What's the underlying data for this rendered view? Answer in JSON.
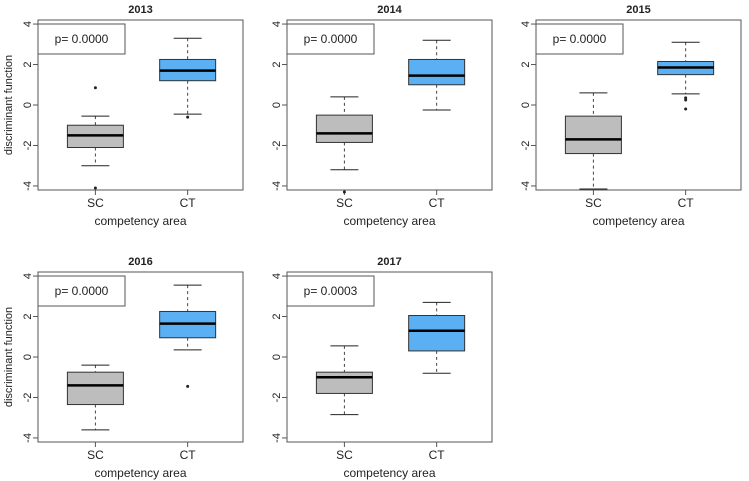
{
  "colors": {
    "sc_box": "#bdbdbd",
    "ct_box": "#5ab0f2",
    "frame": "#555555",
    "median": "#000000",
    "whisker": "#444444"
  },
  "chart_data": [
    {
      "type": "boxplot",
      "title": "2013",
      "xlabel": "competency area",
      "ylabel": "discriminant function",
      "ylim": [
        -4.2,
        4.2
      ],
      "yticks": [
        -4,
        -2,
        0,
        2,
        4
      ],
      "annotation": "p= 0.0000",
      "categories": [
        "SC",
        "CT"
      ],
      "boxes": [
        {
          "name": "SC",
          "whisker_low": -3.0,
          "q1": -2.1,
          "median": -1.5,
          "q3": -1.0,
          "whisker_high": -0.55,
          "outliers": [
            0.85,
            -4.1
          ]
        },
        {
          "name": "CT",
          "whisker_low": -0.45,
          "q1": 1.2,
          "median": 1.7,
          "q3": 2.25,
          "whisker_high": 3.3,
          "outliers": [
            -0.6
          ]
        }
      ]
    },
    {
      "type": "boxplot",
      "title": "2014",
      "xlabel": "competency area",
      "ylabel": "",
      "ylim": [
        -4.2,
        4.2
      ],
      "yticks": [
        -4,
        -2,
        0,
        2,
        4
      ],
      "annotation": "p= 0.0000",
      "categories": [
        "SC",
        "CT"
      ],
      "boxes": [
        {
          "name": "SC",
          "whisker_low": -3.2,
          "q1": -1.85,
          "median": -1.4,
          "q3": -0.5,
          "whisker_high": 0.4,
          "outliers": [
            -4.3
          ]
        },
        {
          "name": "CT",
          "whisker_low": -0.25,
          "q1": 1.0,
          "median": 1.45,
          "q3": 2.25,
          "whisker_high": 3.2,
          "outliers": []
        }
      ]
    },
    {
      "type": "boxplot",
      "title": "2015",
      "xlabel": "competency area",
      "ylabel": "",
      "ylim": [
        -4.2,
        4.2
      ],
      "yticks": [
        -4,
        -2,
        0,
        2,
        4
      ],
      "annotation": "p= 0.0000",
      "categories": [
        "SC",
        "CT"
      ],
      "boxes": [
        {
          "name": "SC",
          "whisker_low": -4.15,
          "q1": -2.4,
          "median": -1.7,
          "q3": -0.55,
          "whisker_high": 0.6,
          "outliers": []
        },
        {
          "name": "CT",
          "whisker_low": 0.55,
          "q1": 1.5,
          "median": 1.85,
          "q3": 2.15,
          "whisker_high": 3.1,
          "outliers": [
            0.35,
            0.25,
            -0.2
          ]
        }
      ]
    },
    {
      "type": "boxplot",
      "title": "2016",
      "xlabel": "competency area",
      "ylabel": "discriminant function",
      "ylim": [
        -4.2,
        4.2
      ],
      "yticks": [
        -4,
        -2,
        0,
        2,
        4
      ],
      "annotation": "p= 0.0000",
      "categories": [
        "SC",
        "CT"
      ],
      "boxes": [
        {
          "name": "SC",
          "whisker_low": -3.6,
          "q1": -2.35,
          "median": -1.4,
          "q3": -0.75,
          "whisker_high": -0.4,
          "outliers": []
        },
        {
          "name": "CT",
          "whisker_low": 0.35,
          "q1": 0.95,
          "median": 1.65,
          "q3": 2.25,
          "whisker_high": 3.55,
          "outliers": [
            -1.45
          ]
        }
      ]
    },
    {
      "type": "boxplot",
      "title": "2017",
      "xlabel": "competency area",
      "ylabel": "",
      "ylim": [
        -4.2,
        4.2
      ],
      "yticks": [
        -4,
        -2,
        0,
        2,
        4
      ],
      "annotation": "p= 0.0003",
      "categories": [
        "SC",
        "CT"
      ],
      "boxes": [
        {
          "name": "SC",
          "whisker_low": -2.85,
          "q1": -1.8,
          "median": -1.0,
          "q3": -0.75,
          "whisker_high": 0.55,
          "outliers": []
        },
        {
          "name": "CT",
          "whisker_low": -0.8,
          "q1": 0.3,
          "median": 1.3,
          "q3": 2.05,
          "whisker_high": 2.7,
          "outliers": []
        }
      ]
    }
  ]
}
